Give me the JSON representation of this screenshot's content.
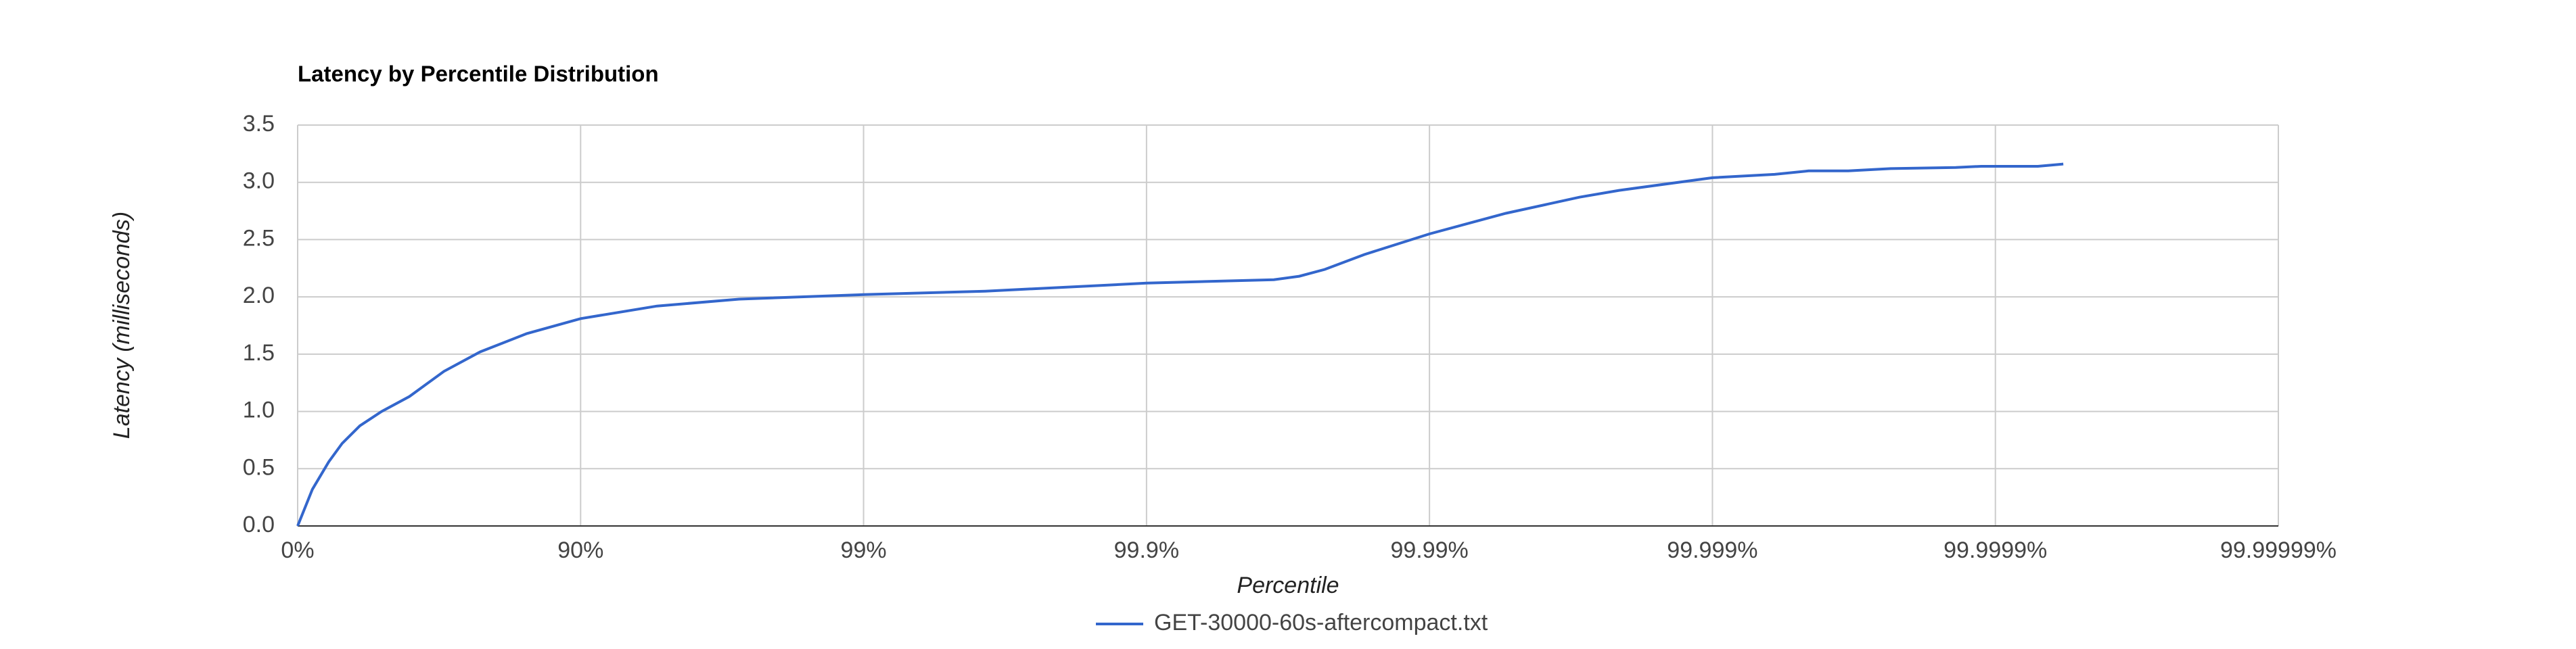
{
  "chart_data": {
    "type": "line",
    "title": "Latency by Percentile Distribution",
    "x_label": "Percentile",
    "y_label": "Latency (milliseconds)",
    "x": [
      0,
      0.052,
      0.11,
      0.157,
      0.22,
      0.297,
      0.395,
      0.517,
      0.645,
      0.81,
      1.0,
      1.27,
      1.56,
      2.0,
      2.43,
      3.0,
      3.45,
      3.54,
      3.63,
      3.77,
      4.0,
      4.27,
      4.53,
      4.67,
      5.0,
      5.22,
      5.34,
      5.48,
      5.63,
      5.86,
      5.95,
      6.15,
      6.24
    ],
    "series": [
      {
        "name": "GET-30000-60s-aftercompact.txt",
        "color": "#3366cc",
        "values": [
          0,
          0.32,
          0.56,
          0.72,
          0.875,
          1.0,
          1.13,
          1.35,
          1.52,
          1.68,
          1.81,
          1.92,
          1.98,
          2.02,
          2.05,
          2.12,
          2.15,
          2.18,
          2.24,
          2.37,
          2.55,
          2.73,
          2.87,
          2.93,
          3.04,
          3.07,
          3.1,
          3.1,
          3.12,
          3.13,
          3.14,
          3.14,
          3.16
        ]
      }
    ],
    "xlim": [
      0,
      7
    ],
    "xticks": [
      {
        "value": 0,
        "label": "0%"
      },
      {
        "value": 1,
        "label": "90%"
      },
      {
        "value": 2,
        "label": "99%"
      },
      {
        "value": 3,
        "label": "99.9%"
      },
      {
        "value": 4,
        "label": "99.99%"
      },
      {
        "value": 5,
        "label": "99.999%"
      },
      {
        "value": 6,
        "label": "99.9999%"
      },
      {
        "value": 7,
        "label": "99.99999%"
      }
    ],
    "ylim": [
      0,
      3.5
    ],
    "yticks": [
      {
        "value": 0,
        "label": "0.0"
      },
      {
        "value": 0.5,
        "label": "0.5"
      },
      {
        "value": 1,
        "label": "1.0"
      },
      {
        "value": 1.5,
        "label": "1.5"
      },
      {
        "value": 2,
        "label": "2.0"
      },
      {
        "value": 2.5,
        "label": "2.5"
      },
      {
        "value": 3,
        "label": "3.0"
      },
      {
        "value": 3.5,
        "label": "3.5"
      }
    ],
    "grid": true
  }
}
